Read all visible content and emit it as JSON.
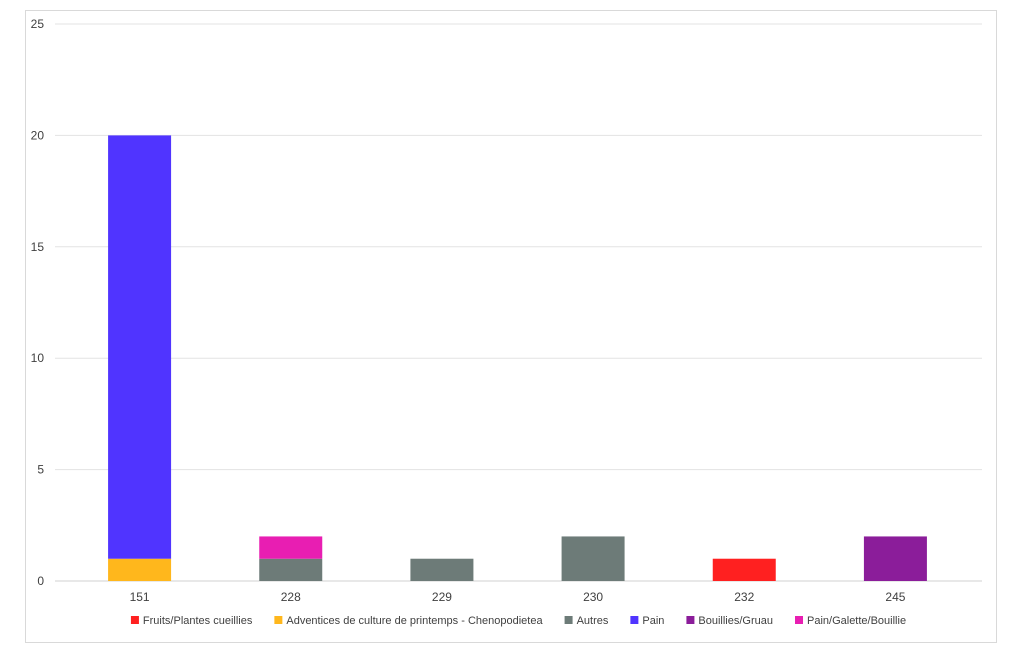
{
  "chart_data": {
    "type": "bar",
    "stacked": true,
    "title": "",
    "xlabel": "",
    "ylabel": "",
    "ylim": [
      0,
      25
    ],
    "yticks": [
      0,
      5,
      10,
      15,
      20,
      25
    ],
    "grid": true,
    "legend_position": "bottom",
    "categories": [
      "151",
      "228",
      "229",
      "230",
      "232",
      "245"
    ],
    "series": [
      {
        "name": "Fruits/Plantes cueillies",
        "color": "#ff2020",
        "values": [
          0,
          0,
          0,
          0,
          1,
          0
        ]
      },
      {
        "name": "Adventices de culture de printemps - Chenopodietea",
        "color": "#ffb71c",
        "values": [
          1,
          0,
          0,
          0,
          0,
          0
        ]
      },
      {
        "name": "Autres",
        "color": "#6d7b78",
        "values": [
          0,
          1,
          1,
          2,
          0,
          0
        ]
      },
      {
        "name": "Pain",
        "color": "#5034ff",
        "values": [
          19,
          0,
          0,
          0,
          0,
          0
        ]
      },
      {
        "name": "Bouillies/Gruau",
        "color": "#8b1d9a",
        "values": [
          0,
          0,
          0,
          0,
          0,
          2
        ]
      },
      {
        "name": "Pain/Galette/Bouillie",
        "color": "#e81eb2",
        "values": [
          0,
          1,
          0,
          0,
          0,
          0
        ]
      }
    ]
  }
}
